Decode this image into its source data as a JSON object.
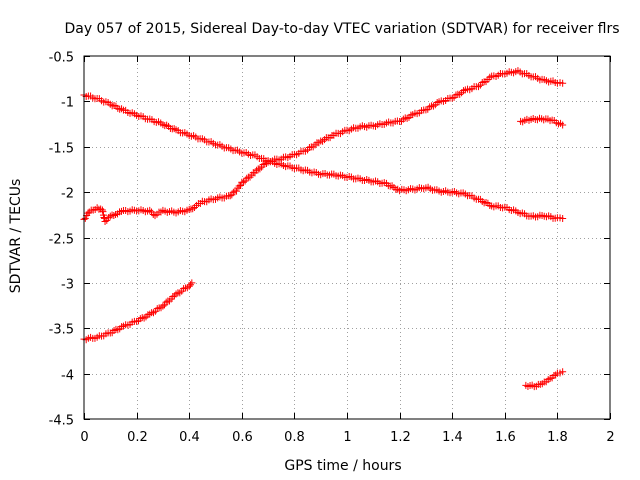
{
  "chart_data": {
    "type": "scatter",
    "title": "Day 057 of 2015, Sidereal Day-to-day VTEC variation (SDTVAR) for receiver flrs",
    "xlabel": "GPS time / hours",
    "ylabel": "SDTVAR / TECUs",
    "xlim": [
      0,
      2
    ],
    "ylim": [
      -4.5,
      -0.5
    ],
    "x_ticks": [
      0,
      0.2,
      0.4,
      0.6,
      0.8,
      1,
      1.2,
      1.4,
      1.6,
      1.8,
      2
    ],
    "x_tick_labels": [
      "0",
      "0.2",
      "0.4",
      "0.6",
      "0.8",
      "1",
      "1.2",
      "1.4",
      "1.6",
      "1.8",
      "2"
    ],
    "y_ticks": [
      -0.5,
      -1,
      -1.5,
      -2,
      -2.5,
      -3,
      -3.5,
      -4,
      -4.5
    ],
    "y_tick_labels": [
      "-0.5",
      "-1",
      "-1.5",
      "-2",
      "-2.5",
      "-3",
      "-3.5",
      "-4",
      "-4.5"
    ],
    "grid": true,
    "marker": "plus",
    "color": "#ff0000",
    "series": [
      {
        "points": [
          [
            0,
            -0.93
          ],
          [
            0.05,
            -0.97
          ],
          [
            0.1,
            -1.03
          ],
          [
            0.15,
            -1.1
          ],
          [
            0.2,
            -1.15
          ],
          [
            0.25,
            -1.2
          ],
          [
            0.3,
            -1.25
          ],
          [
            0.35,
            -1.32
          ],
          [
            0.4,
            -1.37
          ],
          [
            0.45,
            -1.42
          ],
          [
            0.5,
            -1.47
          ],
          [
            0.55,
            -1.52
          ],
          [
            0.6,
            -1.56
          ],
          [
            0.65,
            -1.6
          ],
          [
            0.7,
            -1.66
          ],
          [
            0.75,
            -1.7
          ],
          [
            0.8,
            -1.73
          ],
          [
            0.85,
            -1.77
          ],
          [
            0.9,
            -1.8
          ],
          [
            0.95,
            -1.81
          ],
          [
            1.0,
            -1.83
          ],
          [
            1.05,
            -1.86
          ],
          [
            1.1,
            -1.88
          ],
          [
            1.15,
            -1.91
          ],
          [
            1.2,
            -1.98
          ],
          [
            1.25,
            -1.97
          ],
          [
            1.3,
            -1.95
          ],
          [
            1.35,
            -1.99
          ],
          [
            1.4,
            -2.0
          ],
          [
            1.45,
            -2.02
          ],
          [
            1.5,
            -2.08
          ],
          [
            1.55,
            -2.15
          ],
          [
            1.6,
            -2.17
          ],
          [
            1.65,
            -2.22
          ],
          [
            1.7,
            -2.27
          ],
          [
            1.75,
            -2.26
          ],
          [
            1.8,
            -2.29
          ],
          [
            1.82,
            -2.29
          ]
        ]
      },
      {
        "points": [
          [
            0,
            -2.3
          ],
          [
            0.02,
            -2.22
          ],
          [
            0.05,
            -2.17
          ],
          [
            0.07,
            -2.2
          ],
          [
            0.08,
            -2.32
          ],
          [
            0.1,
            -2.27
          ],
          [
            0.12,
            -2.24
          ],
          [
            0.15,
            -2.21
          ],
          [
            0.2,
            -2.2
          ],
          [
            0.25,
            -2.21
          ],
          [
            0.27,
            -2.25
          ],
          [
            0.3,
            -2.21
          ],
          [
            0.35,
            -2.22
          ],
          [
            0.4,
            -2.2
          ],
          [
            0.42,
            -2.16
          ],
          [
            0.45,
            -2.11
          ],
          [
            0.5,
            -2.07
          ],
          [
            0.55,
            -2.05
          ],
          [
            0.58,
            -1.98
          ],
          [
            0.6,
            -1.9
          ],
          [
            0.65,
            -1.78
          ],
          [
            0.7,
            -1.66
          ],
          [
            0.75,
            -1.63
          ],
          [
            0.8,
            -1.59
          ],
          [
            0.85,
            -1.53
          ],
          [
            0.9,
            -1.44
          ],
          [
            0.95,
            -1.37
          ],
          [
            1.0,
            -1.32
          ],
          [
            1.05,
            -1.28
          ],
          [
            1.1,
            -1.27
          ],
          [
            1.15,
            -1.24
          ],
          [
            1.2,
            -1.22
          ],
          [
            1.25,
            -1.15
          ],
          [
            1.3,
            -1.09
          ],
          [
            1.35,
            -1.01
          ],
          [
            1.4,
            -0.96
          ],
          [
            1.45,
            -0.88
          ],
          [
            1.5,
            -0.83
          ],
          [
            1.55,
            -0.73
          ],
          [
            1.6,
            -0.69
          ],
          [
            1.65,
            -0.67
          ],
          [
            1.7,
            -0.72
          ],
          [
            1.75,
            -0.77
          ],
          [
            1.8,
            -0.79
          ],
          [
            1.82,
            -0.8
          ]
        ]
      },
      {
        "points": [
          [
            0,
            -3.62
          ],
          [
            0.05,
            -3.6
          ],
          [
            0.1,
            -3.55
          ],
          [
            0.15,
            -3.48
          ],
          [
            0.2,
            -3.42
          ],
          [
            0.25,
            -3.35
          ],
          [
            0.3,
            -3.25
          ],
          [
            0.35,
            -3.13
          ],
          [
            0.4,
            -3.03
          ],
          [
            0.41,
            -3.0
          ]
        ]
      },
      {
        "points": [
          [
            1.66,
            -1.22
          ],
          [
            1.7,
            -1.2
          ],
          [
            1.74,
            -1.19
          ],
          [
            1.78,
            -1.21
          ],
          [
            1.82,
            -1.26
          ]
        ]
      },
      {
        "points": [
          [
            1.68,
            -4.13
          ],
          [
            1.72,
            -4.14
          ],
          [
            1.75,
            -4.09
          ],
          [
            1.78,
            -4.05
          ],
          [
            1.8,
            -3.99
          ],
          [
            1.82,
            -3.98
          ]
        ]
      }
    ]
  }
}
